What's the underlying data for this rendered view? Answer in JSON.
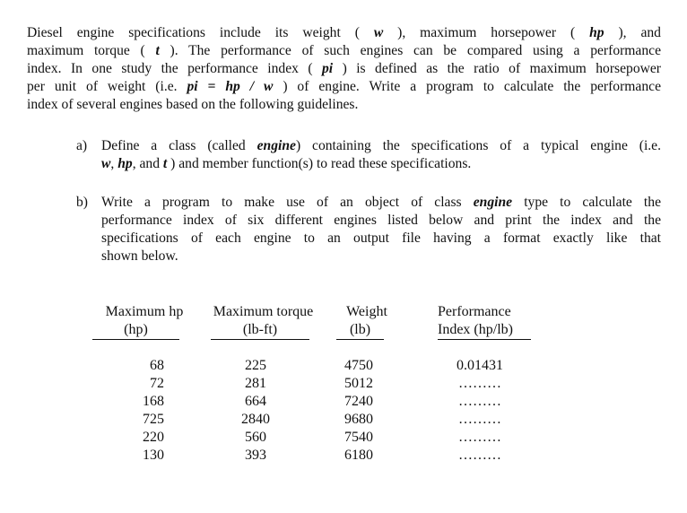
{
  "intro": {
    "lines": [
      {
        "seg": [
          {
            "t": "Diesel engine specifications include its weight ( "
          },
          {
            "t": "w",
            "b": true
          },
          {
            "t": " ), maximum horsepower ( "
          },
          {
            "t": "hp",
            "b": true
          },
          {
            "t": " ), and"
          }
        ]
      },
      {
        "seg": [
          {
            "t": "maximum torque ( "
          },
          {
            "t": "t",
            "b": true
          },
          {
            "t": " ). The performance of such engines can be compared using a performance"
          }
        ]
      },
      {
        "seg": [
          {
            "t": "index. In one study the performance index ( "
          },
          {
            "t": "pi",
            "b": true
          },
          {
            "t": " ) is defined as the ratio of maximum horsepower"
          }
        ]
      },
      {
        "seg": [
          {
            "t": "per unit of weight (i.e. "
          },
          {
            "t": "pi = hp / w",
            "b": true
          },
          {
            "t": " ) of engine. Write a program to calculate the performance"
          }
        ]
      },
      {
        "seg": [
          {
            "t": "index of several engines based on the following guidelines."
          }
        ],
        "last": true
      }
    ]
  },
  "items": [
    {
      "label": "a)",
      "lines": [
        {
          "seg": [
            {
              "t": "Define a class (called "
            },
            {
              "t": "engine",
              "b": true
            },
            {
              "t": ") containing the specifications of a typical engine (i.e."
            }
          ]
        },
        {
          "seg": [
            {
              "t": "w",
              "b": true
            },
            {
              "t": ", "
            },
            {
              "t": "hp",
              "b": true
            },
            {
              "t": ", and "
            },
            {
              "t": "t",
              "b": true
            },
            {
              "t": " ) and member function(s) to read these specifications."
            }
          ],
          "last": true
        }
      ]
    },
    {
      "label": "b)",
      "lines": [
        {
          "seg": [
            {
              "t": "Write a program to make use of an object of class "
            },
            {
              "t": "engine",
              "b": true
            },
            {
              "t": " type to calculate the"
            }
          ]
        },
        {
          "seg": [
            {
              "t": "performance index of six different engines listed below and print the index and the"
            }
          ]
        },
        {
          "seg": [
            {
              "t": "specifications of each engine to an output file having a format exactly like that"
            }
          ]
        },
        {
          "seg": [
            {
              "t": "shown below."
            }
          ],
          "last": true
        }
      ]
    }
  ],
  "table": {
    "headers": [
      {
        "title": "Maximum hp",
        "unit": "(hp)"
      },
      {
        "title": "Maximum torque",
        "unit": "(lb-ft)"
      },
      {
        "title": "Weight",
        "unit": "(lb)"
      },
      {
        "title": "Performance",
        "unit": "Index (hp/lb)"
      }
    ],
    "rows": [
      [
        "68",
        "225",
        "4750",
        "0.01431"
      ],
      [
        "72",
        "281",
        "5012",
        "………"
      ],
      [
        "168",
        "664",
        "7240",
        "………"
      ],
      [
        "725",
        "2840",
        "9680",
        "………"
      ],
      [
        "220",
        "560",
        "7540",
        "………"
      ],
      [
        "130",
        "393",
        "6180",
        "………"
      ]
    ]
  }
}
